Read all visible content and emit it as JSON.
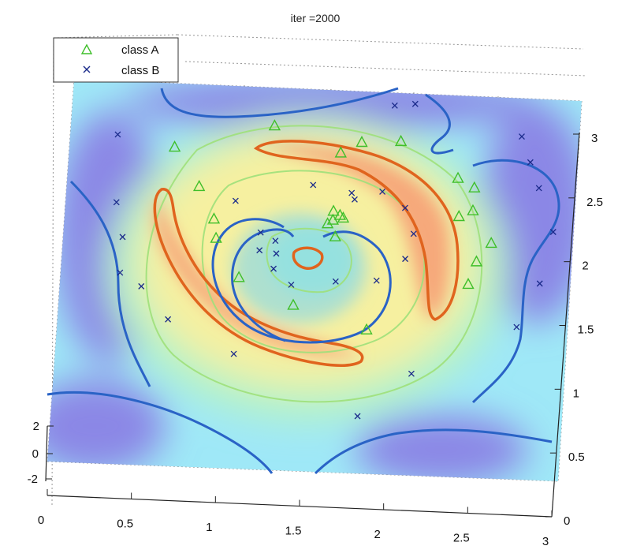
{
  "title": "iter =2000",
  "legend": [
    {
      "label": "class A",
      "marker": "triangle",
      "color": "#3fbf2a"
    },
    {
      "label": "class B",
      "marker": "x",
      "color": "#1a2a8a"
    }
  ],
  "colors": {
    "low": "#8b87e6",
    "mid": "#9fe8f7",
    "high": "#f6a87a",
    "contour_low": "#2a63c6",
    "contour_high": "#e0641e",
    "classA": "#3fbf2a",
    "classB": "#1a2a8a"
  },
  "chart_data": {
    "type": "scatter",
    "view": "3d-surface-contour",
    "title": "iter =2000",
    "xlim": [
      0,
      3
    ],
    "ylim": [
      0,
      3
    ],
    "zlim": [
      -2,
      2
    ],
    "x_ticks": [
      "0",
      "0.5",
      "1",
      "1.5",
      "2",
      "2.5",
      "3"
    ],
    "y_ticks": [
      "0",
      "0.5",
      "1",
      "1.5",
      "2",
      "2.5",
      "3"
    ],
    "z_ticks": [
      "2",
      "0",
      "-2"
    ],
    "grid": true,
    "legend_position": "top-left",
    "series": [
      {
        "name": "class A",
        "marker": "triangle",
        "points": [
          [
            1.2,
            2.7
          ],
          [
            1.72,
            2.6
          ],
          [
            1.95,
            2.62
          ],
          [
            1.6,
            2.51
          ],
          [
            2.3,
            2.35
          ],
          [
            2.4,
            2.28
          ],
          [
            2.32,
            2.05
          ],
          [
            2.4,
            2.1
          ],
          [
            2.52,
            1.85
          ],
          [
            2.44,
            1.7
          ],
          [
            2.4,
            1.52
          ],
          [
            0.62,
            2.5
          ],
          [
            0.78,
            2.2
          ],
          [
            0.88,
            1.95
          ],
          [
            0.9,
            1.8
          ],
          [
            1.05,
            1.5
          ],
          [
            1.38,
            1.3
          ],
          [
            1.82,
            1.13
          ],
          [
            1.58,
            2.05
          ],
          [
            1.62,
            2.02
          ],
          [
            1.55,
            1.95
          ],
          [
            1.6,
            1.85
          ],
          [
            1.64,
            2.0
          ],
          [
            1.58,
            1.98
          ]
        ]
      },
      {
        "name": "class B",
        "marker": "x",
        "points": [
          [
            1.9,
            2.9
          ],
          [
            2.02,
            2.92
          ],
          [
            2.66,
            2.7
          ],
          [
            2.72,
            2.5
          ],
          [
            2.78,
            2.3
          ],
          [
            2.88,
            1.96
          ],
          [
            2.82,
            1.55
          ],
          [
            2.7,
            1.2
          ],
          [
            2.1,
            0.8
          ],
          [
            1.8,
            0.45
          ],
          [
            1.05,
            0.9
          ],
          [
            0.65,
            1.15
          ],
          [
            0.48,
            1.4
          ],
          [
            0.35,
            1.5
          ],
          [
            0.35,
            1.78
          ],
          [
            0.3,
            2.05
          ],
          [
            0.28,
            2.58
          ],
          [
            1.68,
            2.2
          ],
          [
            1.86,
            2.22
          ],
          [
            2.0,
            2.1
          ],
          [
            2.06,
            1.9
          ],
          [
            2.02,
            1.7
          ],
          [
            1.86,
            1.52
          ],
          [
            1.62,
            1.5
          ],
          [
            1.36,
            1.46
          ],
          [
            1.25,
            1.58
          ],
          [
            1.16,
            1.72
          ],
          [
            1.16,
            1.86
          ],
          [
            1.26,
            1.7
          ],
          [
            1.25,
            1.8
          ],
          [
            1.0,
            2.1
          ],
          [
            1.45,
            2.25
          ],
          [
            1.7,
            2.15
          ]
        ]
      }
    ]
  }
}
